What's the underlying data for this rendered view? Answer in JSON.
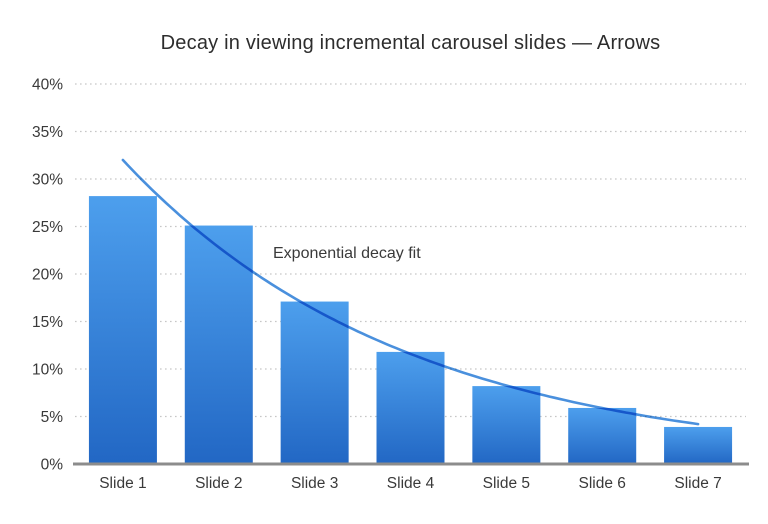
{
  "chart_data": {
    "type": "bar",
    "title": "Decay in viewing incremental carousel slides — Arrows",
    "categories": [
      "Slide 1",
      "Slide 2",
      "Slide 3",
      "Slide 4",
      "Slide 5",
      "Slide 6",
      "Slide 7"
    ],
    "values": [
      28.2,
      25.1,
      17.1,
      11.8,
      8.2,
      5.9,
      3.9
    ],
    "unit": "%",
    "xlabel": "",
    "ylabel": "",
    "ylim": [
      0,
      40
    ],
    "ytick_step": 5,
    "ytick_labels": [
      "0%",
      "5%",
      "10%",
      "15%",
      "20%",
      "25%",
      "30%",
      "35%",
      "40%"
    ],
    "grid": "horizontal dotted",
    "legend": "none",
    "annotation": {
      "text": "Exponential decay fit"
    },
    "fit_curve": {
      "type": "exponential",
      "label": "Exponential decay fit",
      "start_value": 32.0,
      "decay_rate": 0.3385,
      "x_start": 1,
      "x_end": 7,
      "values_at_slides": [
        32.0,
        22.8,
        16.3,
        11.6,
        8.3,
        5.9,
        4.2
      ]
    },
    "colors": {
      "bar_gradient_top": "#4d9fed",
      "bar_gradient_bottom": "#2267c4",
      "curve": "#4a90dd",
      "grid": "#c6c6c6",
      "axis": "#8c8c8c",
      "text": "#3a3a3a",
      "title_text": "#2d2d2d",
      "background": "#ffffff"
    }
  }
}
